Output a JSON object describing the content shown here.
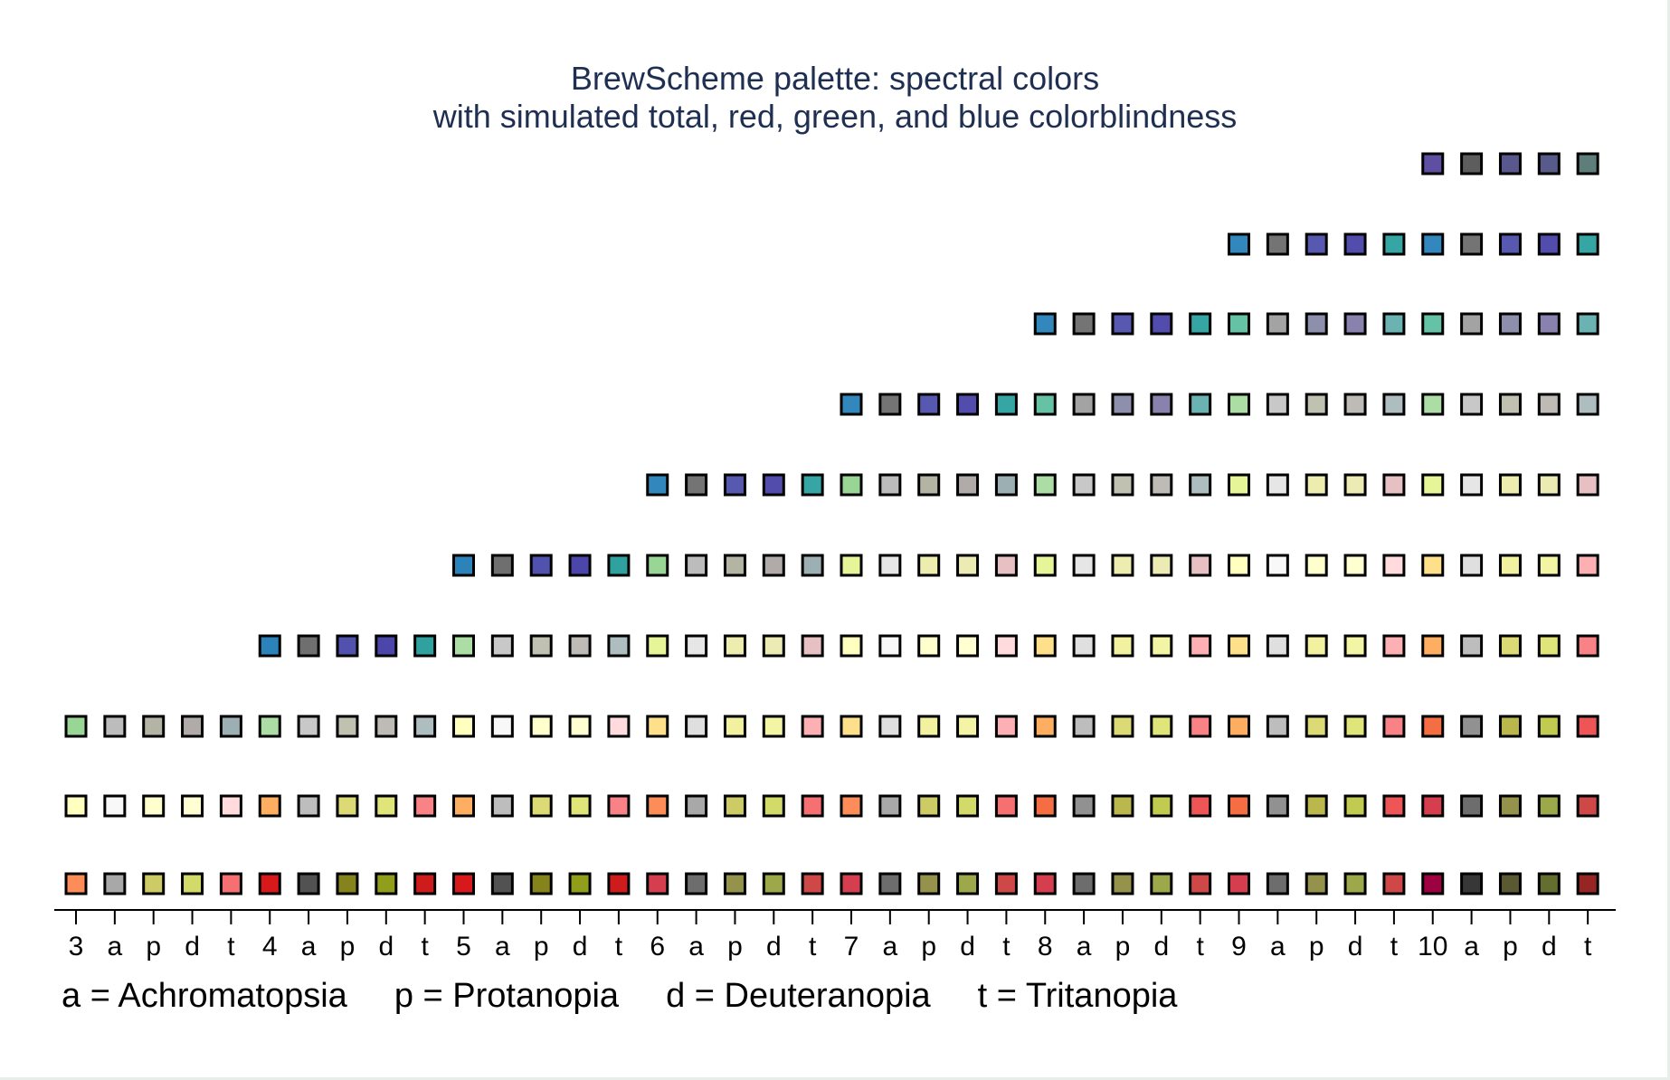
{
  "chart_data": {
    "type": "scatter",
    "title": "BrewScheme palette: spectral colors",
    "subtitle": "with simulated total, red, green, and blue colorblindness",
    "xtick_labels": [
      "3",
      "a",
      "p",
      "d",
      "t",
      "4",
      "a",
      "p",
      "d",
      "t",
      "5",
      "a",
      "p",
      "d",
      "t",
      "6",
      "a",
      "p",
      "d",
      "t",
      "7",
      "a",
      "p",
      "d",
      "t",
      "8",
      "a",
      "p",
      "d",
      "t",
      "9",
      "a",
      "p",
      "d",
      "t",
      "10",
      "a",
      "p",
      "d",
      "t"
    ],
    "legend": [
      "a = Achromatopsia",
      "p = Protanopia",
      "d = Deuteranopia",
      "t = Tritanopia"
    ],
    "columns": [
      [
        "#f48a58",
        "#a0a0a0",
        "#b6a05a",
        "#cc9b55",
        "#f77e86"
      ],
      [
        "#ffffc0",
        "#ffffff",
        "#fffdbf",
        "#fff9c1",
        "#fff0f6"
      ],
      [
        "#99d594",
        "#b7b7b7",
        "#c8bf8f",
        "#e2b69b",
        "#9fc3d3"
      ],
      [
        "#da2020",
        "#3a3a3a",
        "#6e6020",
        "#7f5d10",
        "#dd1c1c"
      ],
      [
        "#f48a58",
        "#a3a3a3",
        "#b3a057",
        "#cf9b54",
        "#f49b9e"
      ],
      [
        "#fdf0a0",
        "#f5f5f5",
        "#fff0a4",
        "#fff0a4",
        "#fef0f6"
      ],
      [
        "#a1da98",
        "#cbcbcb",
        "#d8cd98",
        "#f0c4a8",
        "#a7cddf"
      ],
      [
        "#2c84c0",
        "#727272",
        "#6d77bb",
        "#5672c4",
        "#018a96"
      ],
      [
        "#d7202a",
        "#3d3d3d",
        "#6e6325",
        "#805e15",
        "#d51f28"
      ],
      [
        "#f98c58",
        "#a5a5a5",
        "#b3a15b",
        "#d29c57",
        "#f9a1a4"
      ],
      [
        "#fee691",
        "#e8e8e8",
        "#fff08d",
        "#ffe691",
        "#ffeef5"
      ],
      [
        "#e6f5a3",
        "#f4f4f4",
        "#fff9b0",
        "#fff4b0",
        "#f5f1fa"
      ],
      [
        "#97d59b",
        "#c5c5c5",
        "#cfbe8e",
        "#eab89e",
        "#9dc6d7"
      ],
      [
        "#2a83bf",
        "#717171",
        "#6b76ba",
        "#5572c2",
        "#018993"
      ],
      [
        "#d33b4b",
        "#525252",
        "#746b4c",
        "#896647",
        "#d5363f"
      ],
      [
        "#fd8d5b",
        "#a9a9a9",
        "#b7a55e",
        "#d59f5b",
        "#fd9fa2"
      ],
      [
        "#fee08c",
        "#e3e3e3",
        "#fff08a",
        "#ffe08e",
        "#ffe9f1"
      ],
      [
        "#e6f598",
        "#f2f2f2",
        "#fff5a6",
        "#fff0a9",
        "#f0eff5"
      ],
      [
        "#9cd6a4",
        "#c7c7c7",
        "#cfbf8d",
        "#e8ba9e",
        "#a4c9d8"
      ],
      [
        "#2a8ac1",
        "#737373",
        "#6c79bb",
        "#567ac4",
        "#038c96"
      ],
      [
        "#d53e4f",
        "#545454",
        "#766d4e",
        "#8c6749",
        "#d73b45"
      ],
      [
        "#f46d43",
        "#8a8a8a",
        "#a39342",
        "#c5834a",
        "#f46f6f"
      ],
      [
        "#fdae61",
        "#bababa",
        "#cdb961",
        "#eaad63",
        "#fdb0a6"
      ],
      [
        "#fee08b",
        "#e1e1e1",
        "#ffee8b",
        "#ffe08b",
        "#ffe6f0"
      ],
      [
        "#e6f598",
        "#f0f0f0",
        "#fff4a6",
        "#fff0a8",
        "#eeeef5"
      ],
      [
        "#abdda4",
        "#cdcdcd",
        "#d9c996",
        "#f3c3a8",
        "#b4d4df"
      ],
      [
        "#66c2a5",
        "#a2a2a2",
        "#b7ad9e",
        "#d7a5aa",
        "#6cc5c4"
      ],
      [
        "#3288bd",
        "#757575",
        "#6e79ba",
        "#5779c3",
        "#058c96"
      ],
      [
        "#ce2155",
        "#4b4b4b",
        "#736543",
        "#88603e",
        "#d02046"
      ],
      [
        "#f46d43",
        "#888888",
        "#a09044",
        "#c2824c",
        "#f46f6e"
      ],
      [
        "#fdae61",
        "#bbbbbb",
        "#cfbb62",
        "#ebae65",
        "#fdafa7"
      ],
      [
        "#fee08b",
        "#e2e2e2",
        "#ffef8c",
        "#ffe18d",
        "#ffe5ef"
      ],
      [
        "#ffffbf",
        "#ffffff",
        "#ffffc0",
        "#ffffc1",
        "#fff6fb"
      ],
      [
        "#e6f598",
        "#f1f1f1",
        "#fff4a5",
        "#fff0a8",
        "#efeef6"
      ],
      [
        "#abdda4",
        "#cecece",
        "#d9c898",
        "#f2c1a7",
        "#b5d4df"
      ],
      [
        "#66c2a5",
        "#a3a3a3",
        "#b6ae9f",
        "#d8a5aa",
        "#6cc6c4"
      ],
      [
        "#3288bd",
        "#757575",
        "#6e7aba",
        "#587ac3",
        "#068b96"
      ],
      [
        "#5e4fa2",
        "#575757",
        "#2f50a1",
        "#235ba8",
        "#555f63"
      ]
    ],
    "columns_note": "",
    "ylim": [
      0,
      11
    ],
    "grid": false
  }
}
